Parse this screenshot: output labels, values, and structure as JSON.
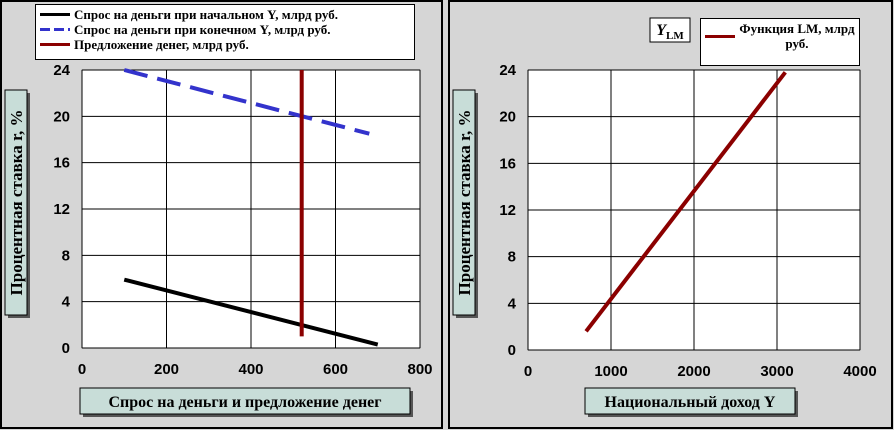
{
  "chart_data": [
    {
      "type": "line",
      "ylabel": "Процентная  ставка r, %",
      "xlabel": "Спрос на деньги и предложение денег",
      "xlim": [
        0,
        800
      ],
      "xticks": [
        0,
        200,
        400,
        600,
        800
      ],
      "ylim": [
        0,
        24
      ],
      "yticks": [
        0,
        4,
        8,
        12,
        16,
        20,
        24
      ],
      "grid": true,
      "series": [
        {
          "name": "Спрос на деньги при начальном Y, млрд руб.",
          "color": "#000000",
          "dash": false,
          "x": [
            100,
            700
          ],
          "values": [
            5.9,
            0.3
          ]
        },
        {
          "name": "Спрос на деньги при конечном Y, млрд руб.",
          "color": "#3333cc",
          "dash": true,
          "x": [
            100,
            680
          ],
          "values": [
            24,
            18.5
          ]
        },
        {
          "name": "Предложение денег, млрд руб.",
          "color": "#8b0000",
          "dash": false,
          "x": [
            520,
            520
          ],
          "values": [
            1,
            24
          ]
        }
      ]
    },
    {
      "type": "line",
      "ylabel": "Процентная  ставка r, %",
      "xlabel": "Национальный доход Y",
      "annotation": {
        "text": "Y",
        "subscript": "LM"
      },
      "xlim": [
        0,
        4000
      ],
      "xticks": [
        0,
        1000,
        2000,
        3000,
        4000
      ],
      "ylim": [
        0,
        24
      ],
      "yticks": [
        0,
        4,
        8,
        12,
        16,
        20,
        24
      ],
      "grid": true,
      "series": [
        {
          "name": "Функция LM, млрд руб.",
          "color": "#8b0000",
          "dash": false,
          "x": [
            700,
            3100
          ],
          "values": [
            1.6,
            23.8
          ]
        }
      ]
    }
  ]
}
